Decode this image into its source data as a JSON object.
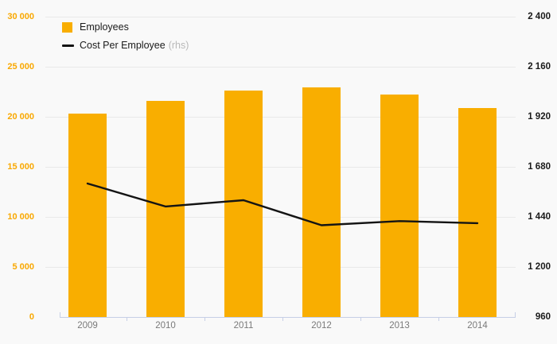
{
  "accent_color": "#f9ae00",
  "line_color": "#141414",
  "background_color": "#f9f9f9",
  "legend": {
    "employees_label": "Employees",
    "cost_label": "Cost Per Employee",
    "cost_suffix": "(rhs)"
  },
  "chart_data": {
    "type": "bar",
    "subtype": "bar+line combo, dual axis",
    "title": "",
    "categories": [
      "2009",
      "2010",
      "2011",
      "2012",
      "2013",
      "2014"
    ],
    "series": [
      {
        "name": "Employees",
        "type": "bar",
        "axis": "left",
        "color": "#f9ae00",
        "values": [
          20300,
          21600,
          22600,
          22900,
          22200,
          20900
        ]
      },
      {
        "name": "Cost Per Employee (rhs)",
        "type": "line",
        "axis": "right",
        "color": "#141414",
        "values": [
          1600,
          1490,
          1520,
          1400,
          1420,
          1410
        ]
      }
    ],
    "left_axis": {
      "min": 0,
      "max": 30000,
      "step": 5000,
      "tick_labels": [
        "0",
        "5 000",
        "10 000",
        "15 000",
        "20 000",
        "25 000",
        "30 000"
      ]
    },
    "right_axis": {
      "min": 960,
      "max": 2400,
      "step": 240,
      "tick_labels": [
        "960",
        "1 200",
        "1 440",
        "1 680",
        "1 920",
        "2 160",
        "2 400"
      ]
    },
    "grid": true,
    "legend_position": "top-left"
  }
}
